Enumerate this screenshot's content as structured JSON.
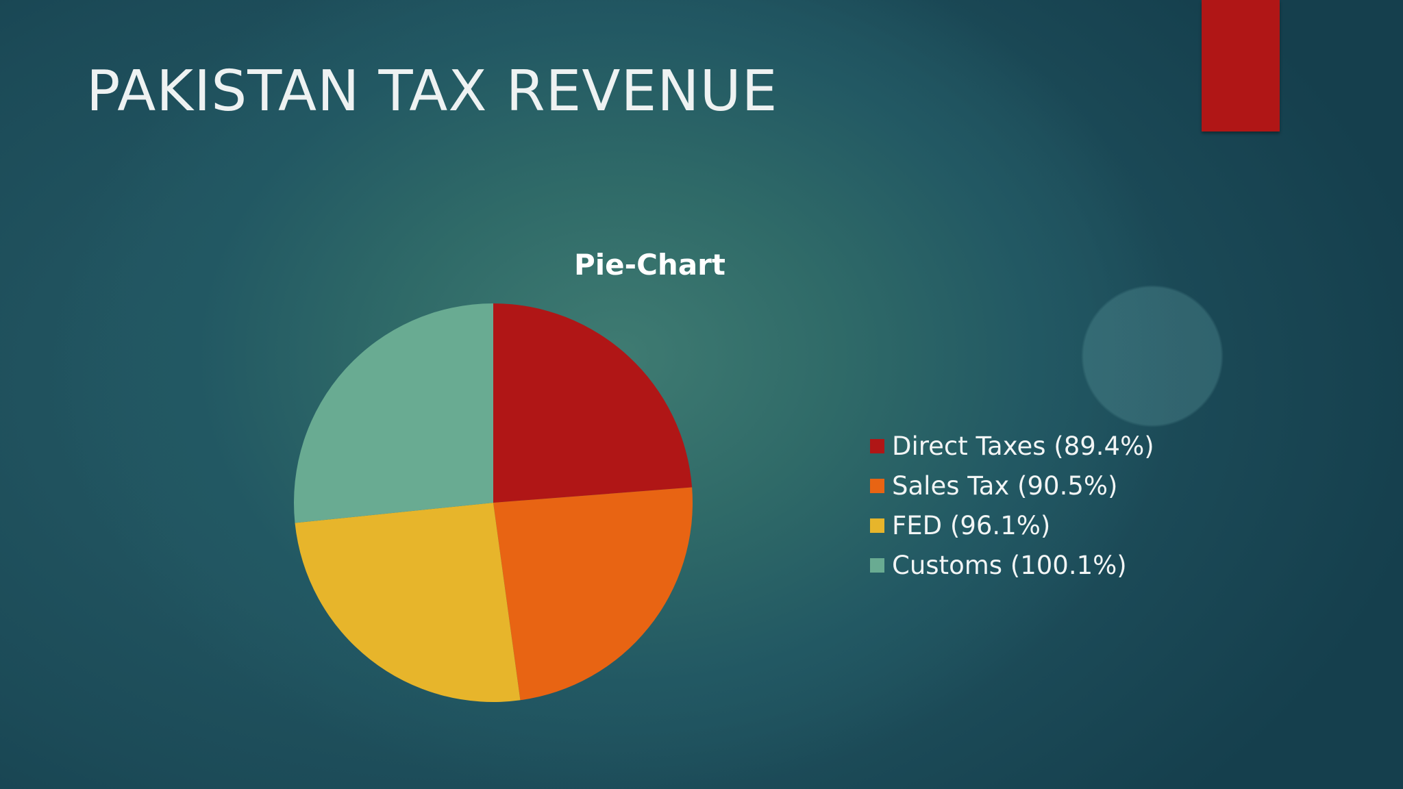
{
  "slide": {
    "title": "PAKISTAN TAX REVENUE",
    "accent_color": "#b01616"
  },
  "chart_data": {
    "type": "pie",
    "title": "Pie-Chart",
    "categories": [
      "Direct Taxes",
      "Sales Tax",
      "FED",
      "Customs"
    ],
    "values": [
      89.4,
      90.5,
      96.1,
      100.1
    ],
    "legend_labels": [
      "Direct Taxes (89.4%)",
      "Sales Tax (90.5%)",
      "FED (96.1%)",
      "Customs (100.1%)"
    ],
    "colors": [
      "#b01616",
      "#e86413",
      "#e7b52b",
      "#69ab92"
    ],
    "legend_position": "right"
  }
}
